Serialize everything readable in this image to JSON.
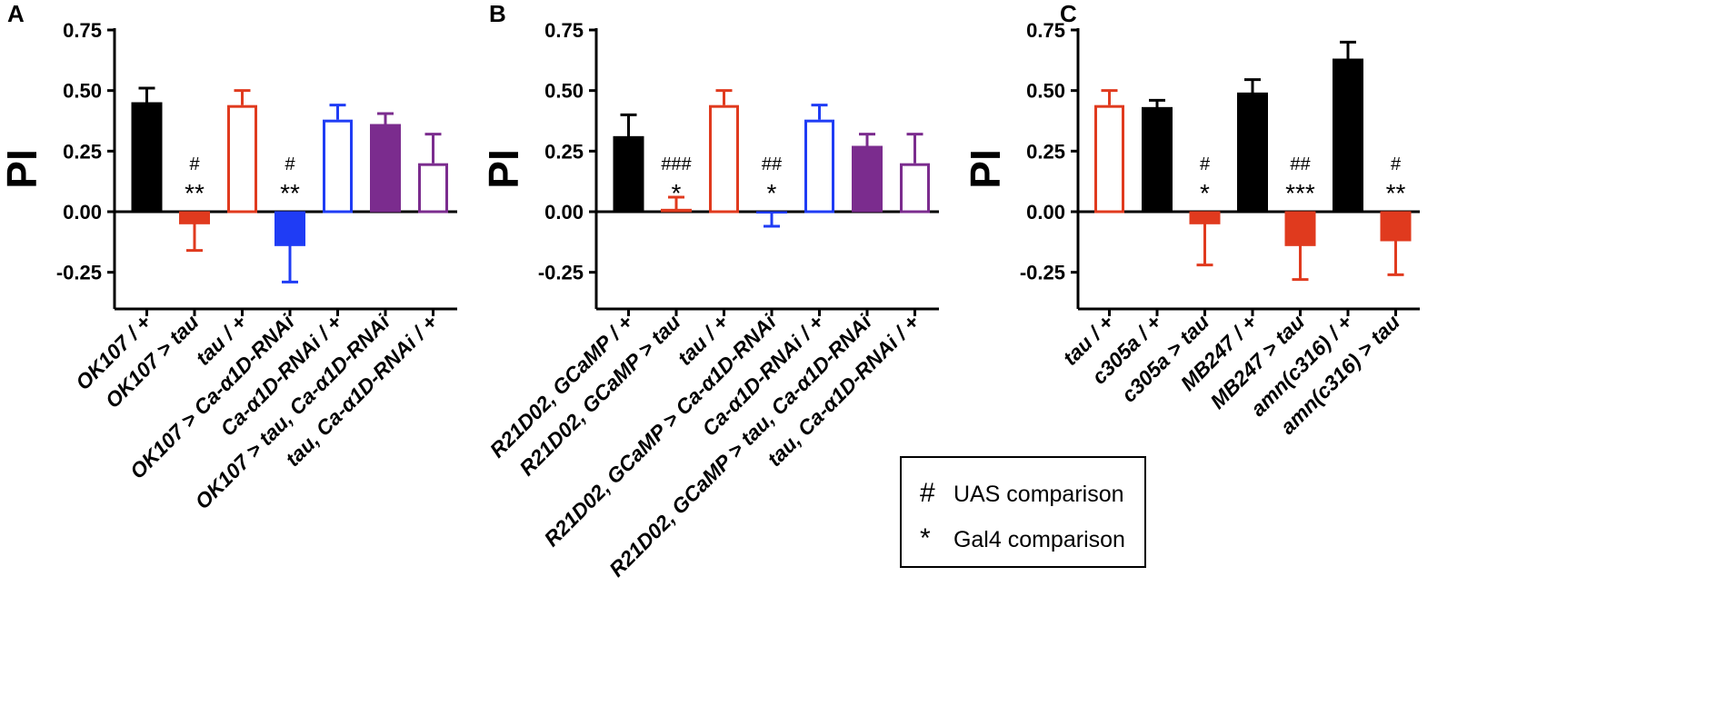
{
  "figure": {
    "legend": [
      {
        "symbol": "#",
        "label": "UAS comparison"
      },
      {
        "symbol": "*",
        "label": "Gal4 comparison"
      }
    ]
  },
  "chart_data": [
    {
      "type": "bar",
      "panel": "A",
      "ylabel": "PI",
      "ylim": [
        -0.35,
        0.75
      ],
      "yticks": [
        "0.75",
        "0.50",
        "0.25",
        "0.00",
        "-0.25"
      ],
      "ytick_values": [
        0.75,
        0.5,
        0.25,
        0.0,
        -0.25
      ],
      "bars": [
        {
          "label": "OK107 / +",
          "value": 0.45,
          "err": 0.06,
          "style": "filled",
          "color": "#000000",
          "hash": "",
          "stars": ""
        },
        {
          "label": "OK107 > tau",
          "value": -0.05,
          "err": 0.11,
          "style": "filled",
          "color": "#e03a1e",
          "hash": "#",
          "stars": "**"
        },
        {
          "label": "tau / +",
          "value": 0.44,
          "err": 0.06,
          "style": "open",
          "color": "#e03a1e",
          "hash": "",
          "stars": ""
        },
        {
          "label": "OK107 > Ca-α1D-RNAi",
          "value": -0.14,
          "err": 0.15,
          "style": "filled",
          "color": "#1f3cf5",
          "hash": "#",
          "stars": "**"
        },
        {
          "label": "Ca-α1D-RNAi / +",
          "value": 0.38,
          "err": 0.06,
          "style": "open",
          "color": "#1f3cf5",
          "hash": "",
          "stars": ""
        },
        {
          "label": "OK107 > tau, Ca-α1D-RNAi",
          "value": 0.36,
          "err": 0.045,
          "style": "filled",
          "color": "#7b2c8e",
          "hash": "",
          "stars": ""
        },
        {
          "label": "tau, Ca-α1D-RNAi / +",
          "value": 0.2,
          "err": 0.12,
          "style": "open",
          "color": "#7b2c8e",
          "hash": "",
          "stars": ""
        }
      ]
    },
    {
      "type": "bar",
      "panel": "B",
      "ylabel": "PI",
      "ylim": [
        -0.35,
        0.75
      ],
      "yticks": [
        "0.75",
        "0.50",
        "0.25",
        "0.00",
        "-0.25"
      ],
      "ytick_values": [
        0.75,
        0.5,
        0.25,
        0.0,
        -0.25
      ],
      "bars": [
        {
          "label": "R21D02, GCaMP / +",
          "value": 0.31,
          "err": 0.09,
          "style": "filled",
          "color": "#000000",
          "hash": "",
          "stars": ""
        },
        {
          "label": "R21D02, GCaMP > tau",
          "value": 0.01,
          "err": 0.05,
          "style": "filled",
          "color": "#e03a1e",
          "hash": "###",
          "stars": "*"
        },
        {
          "label": "tau / +",
          "value": 0.44,
          "err": 0.06,
          "style": "open",
          "color": "#e03a1e",
          "hash": "",
          "stars": ""
        },
        {
          "label": "R21D02, GCaMP > Ca-α1D-RNAi",
          "value": -0.005,
          "err": 0.055,
          "style": "filled",
          "color": "#1f3cf5",
          "hash": "##",
          "stars": "*"
        },
        {
          "label": "Ca-α1D-RNAi / +",
          "value": 0.38,
          "err": 0.06,
          "style": "open",
          "color": "#1f3cf5",
          "hash": "",
          "stars": ""
        },
        {
          "label": "R21D02, GCaMP > tau, Ca-α1D-RNAi",
          "value": 0.27,
          "err": 0.05,
          "style": "filled",
          "color": "#7b2c8e",
          "hash": "",
          "stars": ""
        },
        {
          "label": "tau, Ca-α1D-RNAi / +",
          "value": 0.2,
          "err": 0.12,
          "style": "open",
          "color": "#7b2c8e",
          "hash": "",
          "stars": ""
        }
      ]
    },
    {
      "type": "bar",
      "panel": "C",
      "ylabel": "PI",
      "ylim": [
        -0.35,
        0.75
      ],
      "yticks": [
        "0.75",
        "0.50",
        "0.25",
        "0.00",
        "-0.25"
      ],
      "ytick_values": [
        0.75,
        0.5,
        0.25,
        0.0,
        -0.25
      ],
      "bars": [
        {
          "label": "tau / +",
          "value": 0.44,
          "err": 0.06,
          "style": "open",
          "color": "#e03a1e",
          "hash": "",
          "stars": ""
        },
        {
          "label": "c305a / +",
          "value": 0.43,
          "err": 0.03,
          "style": "filled",
          "color": "#000000",
          "hash": "",
          "stars": ""
        },
        {
          "label": "c305a > tau",
          "value": -0.05,
          "err": 0.17,
          "style": "filled",
          "color": "#e03a1e",
          "hash": "#",
          "stars": "*"
        },
        {
          "label": "MB247 / +",
          "value": 0.49,
          "err": 0.055,
          "style": "filled",
          "color": "#000000",
          "hash": "",
          "stars": ""
        },
        {
          "label": "MB247 > tau",
          "value": -0.14,
          "err": 0.14,
          "style": "filled",
          "color": "#e03a1e",
          "hash": "##",
          "stars": "***"
        },
        {
          "label": "amn(c316) / +",
          "value": 0.63,
          "err": 0.07,
          "style": "filled",
          "color": "#000000",
          "hash": "",
          "stars": ""
        },
        {
          "label": "amn(c316) > tau",
          "value": -0.12,
          "err": 0.14,
          "style": "filled",
          "color": "#e03a1e",
          "hash": "#",
          "stars": "**"
        }
      ]
    }
  ]
}
